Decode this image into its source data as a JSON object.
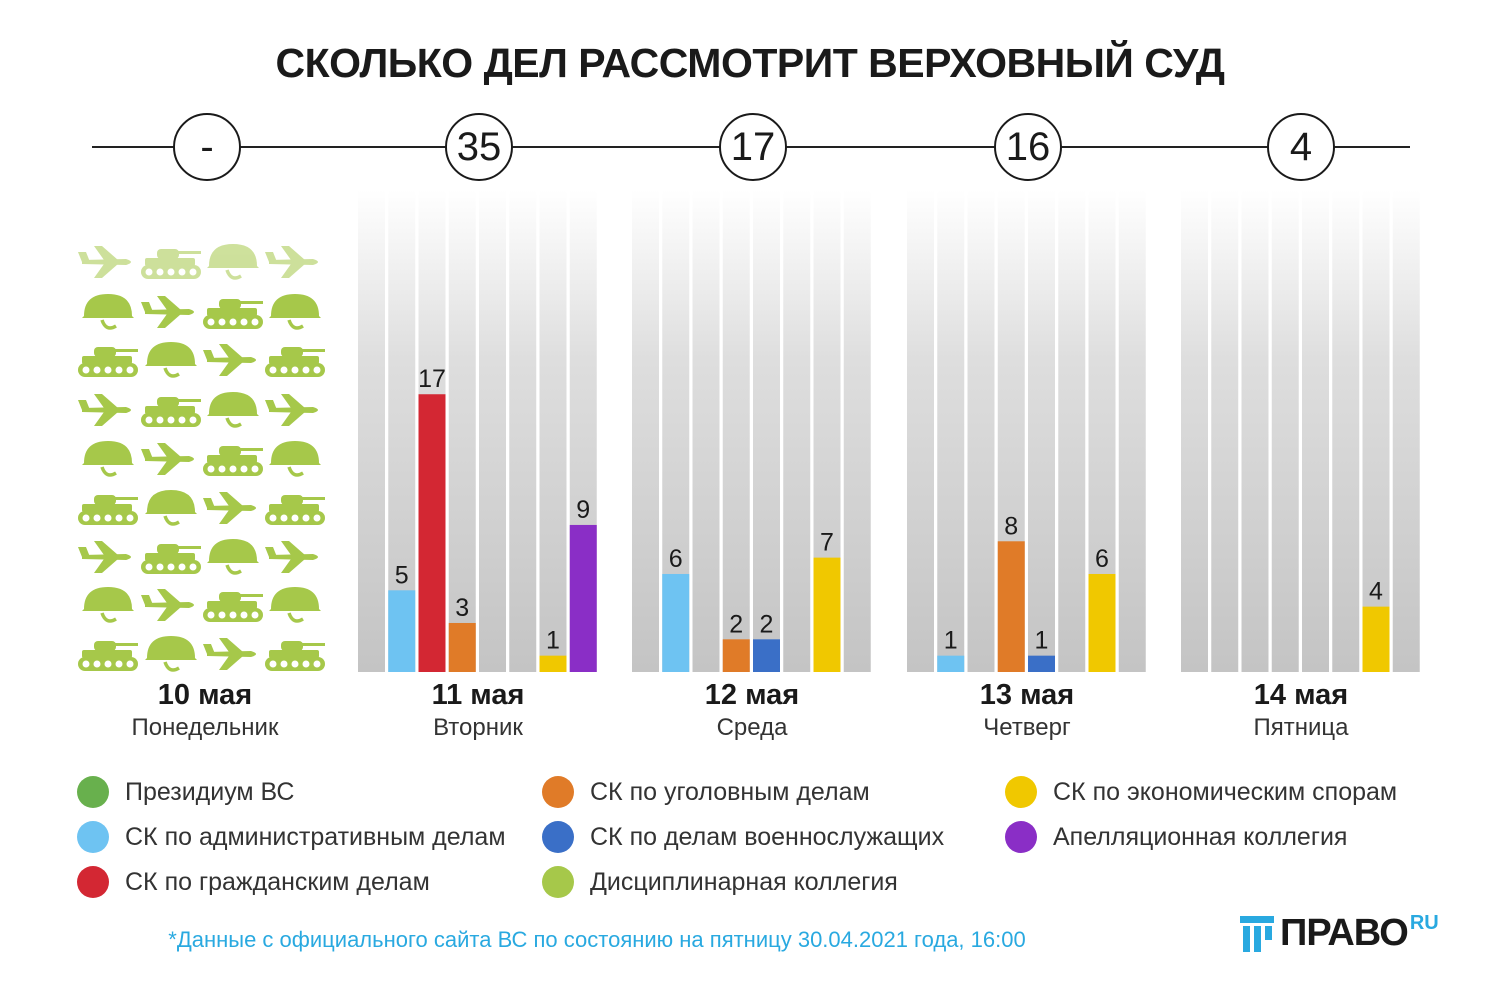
{
  "title": "СКОЛЬКО ДЕЛ РАССМОТРИТ ВЕРХОВНЫЙ СУД",
  "chart_data": {
    "type": "bar",
    "title": "СКОЛЬКО ДЕЛ РАССМОТРИТ ВЕРХОВНЫЙ СУД",
    "ylim": [
      0,
      25
    ],
    "categories": [
      "Президиум ВС",
      "СК по административным делам",
      "СК по гражданским делам",
      "СК по уголовным делам",
      "СК по делам военнослужащих",
      "Дисциплинарная коллегия",
      "СК по экономическим спорам",
      "Апелляционная коллегия"
    ],
    "colors": [
      "#68b04d",
      "#6ec3f2",
      "#d32733",
      "#e07b28",
      "#3a6fc7",
      "#a6c84a",
      "#f0c800",
      "#8a2ec6"
    ],
    "days": [
      {
        "date": "10 мая",
        "weekday": "Понедельник",
        "total": "-",
        "values": [
          null,
          null,
          null,
          null,
          null,
          null,
          null,
          null
        ],
        "no_sessions": true
      },
      {
        "date": "11 мая",
        "weekday": "Вторник",
        "total": "35",
        "values": [
          0,
          5,
          17,
          3,
          0,
          0,
          1,
          9
        ]
      },
      {
        "date": "12 мая",
        "weekday": "Среда",
        "total": "17",
        "values": [
          0,
          6,
          0,
          2,
          2,
          0,
          7,
          0
        ]
      },
      {
        "date": "13 мая",
        "weekday": "Четверг",
        "total": "16",
        "values": [
          0,
          1,
          0,
          8,
          1,
          0,
          6,
          0
        ]
      },
      {
        "date": "14 мая",
        "weekday": "Пятница",
        "total": "4",
        "values": [
          0,
          0,
          0,
          0,
          0,
          0,
          4,
          0
        ]
      }
    ]
  },
  "legend": [
    {
      "label": "Президиум ВС",
      "color": "#68b04d"
    },
    {
      "label": "СК по административным делам",
      "color": "#6ec3f2"
    },
    {
      "label": "СК по гражданским делам",
      "color": "#d32733"
    },
    {
      "label": "СК по уголовным делам",
      "color": "#e07b28"
    },
    {
      "label": "СК по делам военнослужащих",
      "color": "#3a6fc7"
    },
    {
      "label": "Дисциплинарная коллегия",
      "color": "#a6c84a"
    },
    {
      "label": "СК по экономическим спорам",
      "color": "#f0c800"
    },
    {
      "label": "Апелляционная коллегия",
      "color": "#8a2ec6"
    }
  ],
  "pattern_color": "#a6c84a",
  "footnote": "*Данные с официального сайта ВС по состоянию на пятницу 30.04.2021 года, 16:00",
  "logo": {
    "name": "ПРАВО",
    "suffix": "RU"
  }
}
